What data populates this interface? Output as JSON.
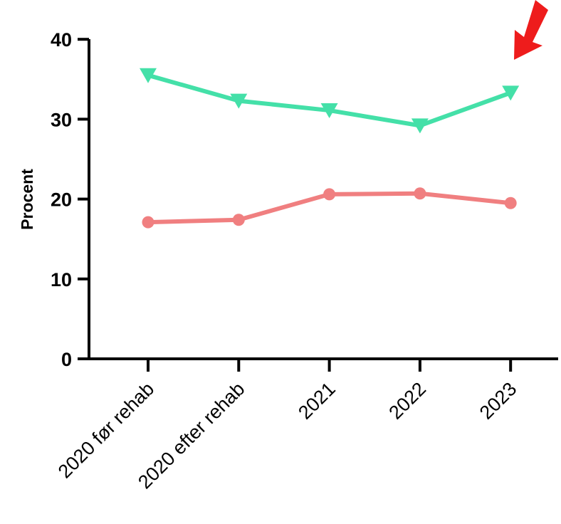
{
  "chart_data": {
    "type": "line",
    "title": "",
    "xlabel": "",
    "ylabel": "Procent",
    "categories": [
      "2020 før rehab",
      "2020 efter rehab",
      "2021",
      "2022",
      "2023"
    ],
    "ylim": [
      0,
      40
    ],
    "yticks": [
      0,
      10,
      20,
      30,
      40
    ],
    "series": [
      {
        "color": "#44e0a8",
        "marker": "triangle-down",
        "values": [
          35.5,
          32.3,
          31.1,
          29.2,
          33.3
        ]
      },
      {
        "color": "#f07f80",
        "marker": "circle",
        "values": [
          17.1,
          17.4,
          20.6,
          20.7,
          19.5
        ]
      }
    ],
    "annotations": [
      {
        "type": "arrow",
        "color": "#ee1c1c",
        "points_to": "2023 top series value"
      }
    ]
  }
}
